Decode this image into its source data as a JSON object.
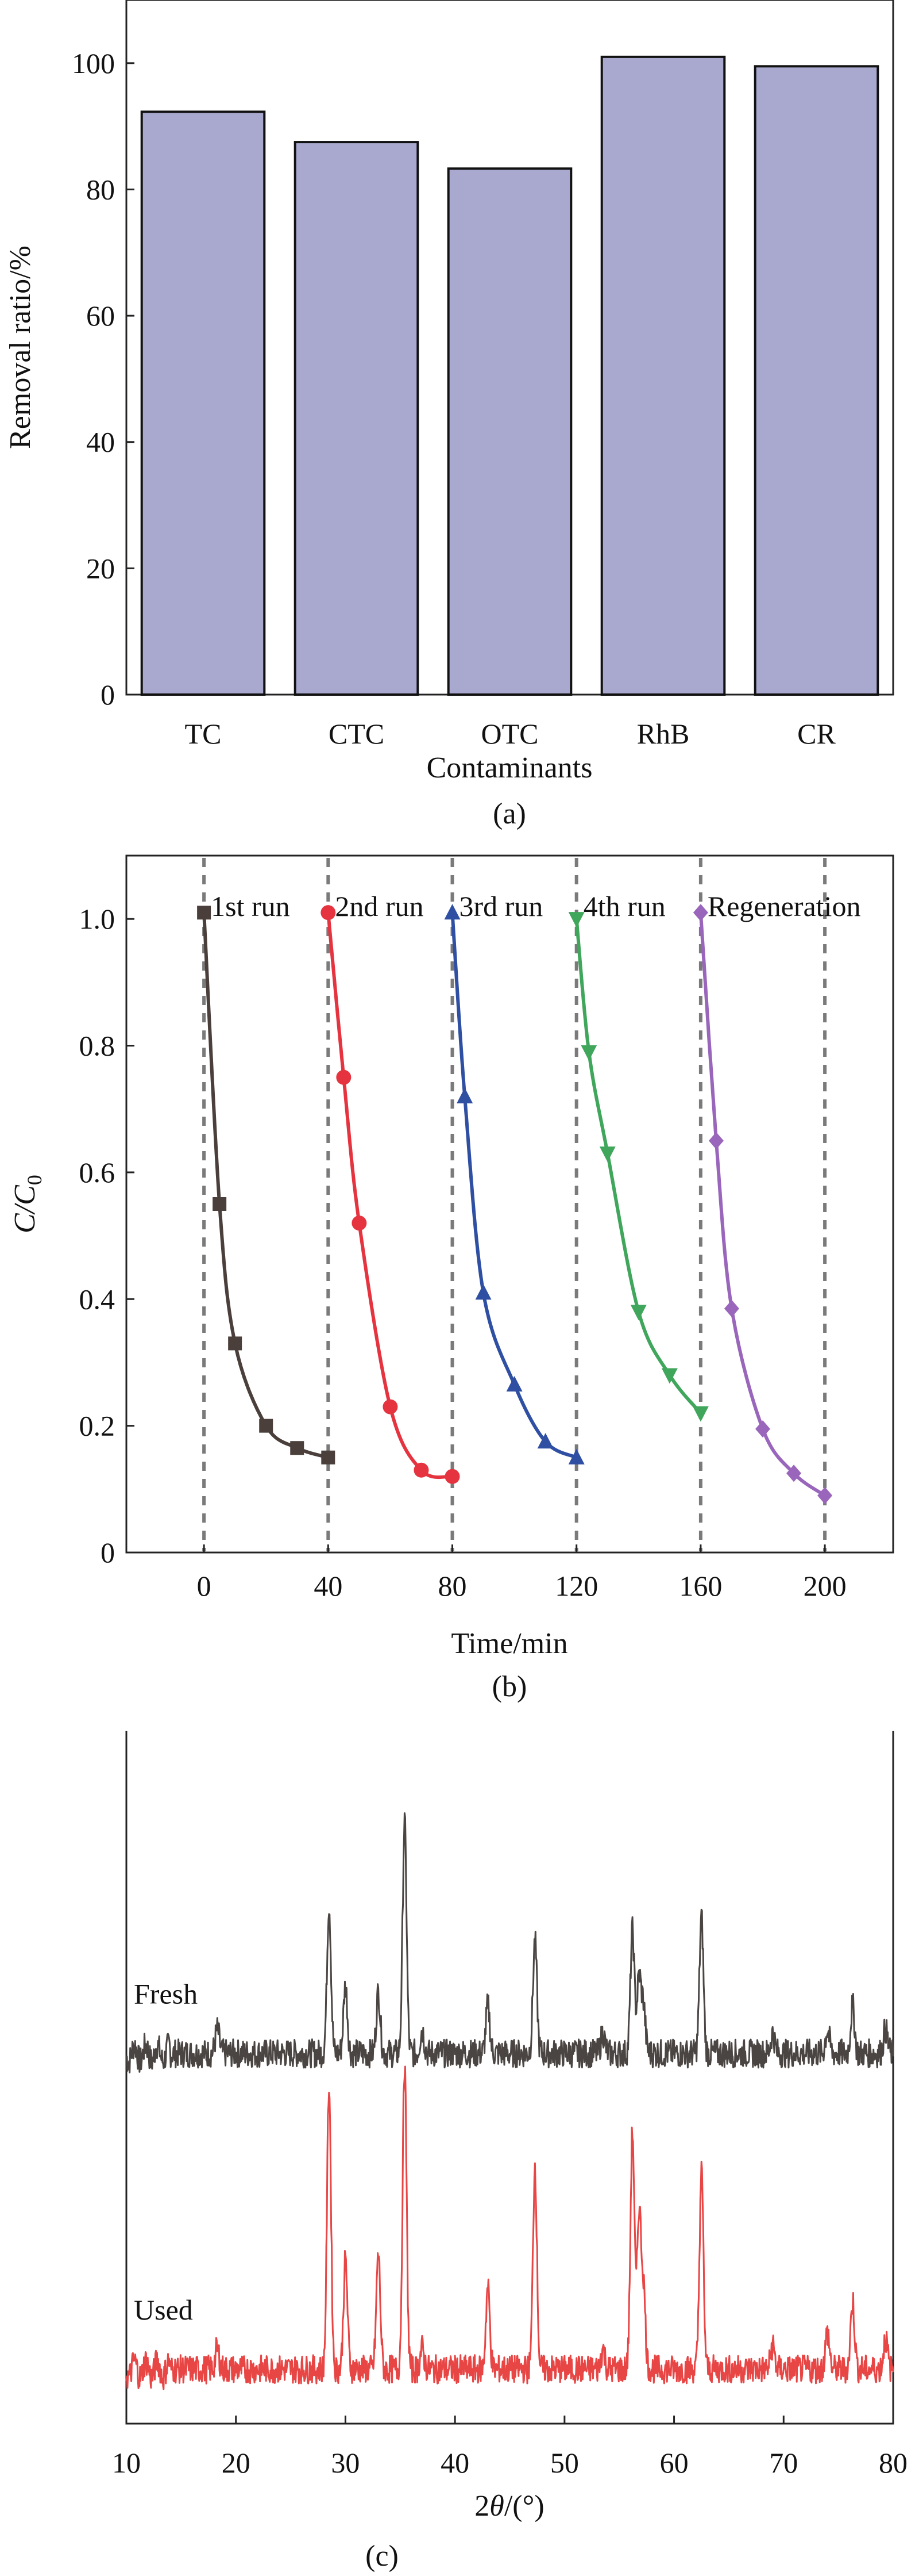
{
  "chart_data": [
    {
      "id": "a",
      "type": "bar",
      "caption": "(a)",
      "xlabel": "Contaminants",
      "ylabel": "Removal ratio/%",
      "ylim": [
        0,
        110
      ],
      "yticks": [
        0,
        20,
        40,
        60,
        80,
        100
      ],
      "categories": [
        "TC",
        "CTC",
        "OTC",
        "RhB",
        "CR"
      ],
      "values": [
        92.3,
        87.5,
        83.3,
        101,
        99.5
      ],
      "color": "#a9a9d0"
    },
    {
      "id": "b",
      "type": "line",
      "caption": "(b)",
      "xlabel": "Time/min",
      "ylabel_main": "C/C",
      "ylabel_sub": "0",
      "xlim": [
        -25,
        222
      ],
      "ylim": [
        0,
        1.1
      ],
      "xticks": [
        0,
        40,
        80,
        120,
        160,
        200
      ],
      "yticks": [
        0,
        0.2,
        0.4,
        0.6,
        0.8,
        1.0
      ],
      "ytick_labels": [
        "0",
        "0.2",
        "0.4",
        "0.6",
        "0.8",
        "1.0"
      ],
      "dashed_x": [
        0,
        40,
        80,
        120,
        160,
        200
      ],
      "series": [
        {
          "name": "1st run",
          "color": "#4a3f3b",
          "marker": "square",
          "x": [
            0,
            5,
            10,
            20,
            30,
            40
          ],
          "y": [
            1.01,
            0.55,
            0.33,
            0.2,
            0.165,
            0.15
          ]
        },
        {
          "name": "2nd run",
          "color": "#e5343f",
          "marker": "circle",
          "x": [
            40,
            45,
            50,
            60,
            70,
            80
          ],
          "y": [
            1.01,
            0.75,
            0.52,
            0.23,
            0.13,
            0.12
          ]
        },
        {
          "name": "3rd run",
          "color": "#2f4fa3",
          "marker": "triangle-up",
          "x": [
            80,
            84,
            90,
            100,
            110,
            120
          ],
          "y": [
            1.01,
            0.72,
            0.41,
            0.265,
            0.175,
            0.15
          ]
        },
        {
          "name": "4th run",
          "color": "#3fa65b",
          "marker": "triangle-down",
          "x": [
            120,
            124,
            130,
            140,
            150,
            160
          ],
          "y": [
            1.0,
            0.79,
            0.63,
            0.38,
            0.28,
            0.22
          ]
        },
        {
          "name": "Regeneration",
          "color": "#9966bb",
          "marker": "diamond",
          "x": [
            160,
            165,
            170,
            180,
            190,
            200
          ],
          "y": [
            1.01,
            0.65,
            0.385,
            0.195,
            0.125,
            0.09
          ]
        }
      ]
    },
    {
      "id": "c",
      "type": "line",
      "caption": "(c)",
      "xlabel_parts": [
        "2",
        "θ",
        "/(°)"
      ],
      "xlim": [
        10,
        80
      ],
      "xticks": [
        10,
        20,
        30,
        40,
        50,
        60,
        70,
        80
      ],
      "ylim": [
        0,
        10.2
      ],
      "series": [
        {
          "name": "Fresh",
          "color": "#4a4542",
          "baseline": 5.45,
          "peaks": [
            [
              18.3,
              0.35
            ],
            [
              28.5,
              2.2
            ],
            [
              30.0,
              1.0
            ],
            [
              33.0,
              0.9
            ],
            [
              35.4,
              3.4
            ],
            [
              37.0,
              0.35
            ],
            [
              43.0,
              0.7
            ],
            [
              47.3,
              1.65
            ],
            [
              53.5,
              0.3
            ],
            [
              56.2,
              1.8
            ],
            [
              56.8,
              1.1
            ],
            [
              57.2,
              0.7
            ],
            [
              62.5,
              2.0
            ],
            [
              69.0,
              0.3
            ],
            [
              74.0,
              0.35
            ],
            [
              76.3,
              0.7
            ],
            [
              79.3,
              0.35
            ]
          ]
        },
        {
          "name": "Used",
          "color": "#e84545",
          "baseline": 0.8,
          "peaks": [
            [
              18.3,
              0.3
            ],
            [
              28.5,
              4.2
            ],
            [
              30.0,
              1.6
            ],
            [
              33.0,
              1.7
            ],
            [
              35.4,
              4.5
            ],
            [
              37.0,
              0.3
            ],
            [
              43.0,
              1.2
            ],
            [
              47.3,
              3.0
            ],
            [
              53.5,
              0.3
            ],
            [
              56.2,
              3.5
            ],
            [
              56.8,
              2.3
            ],
            [
              57.2,
              1.2
            ],
            [
              62.5,
              2.9
            ],
            [
              69.0,
              0.35
            ],
            [
              74.0,
              0.55
            ],
            [
              76.3,
              1.0
            ],
            [
              79.3,
              0.45
            ]
          ]
        }
      ]
    }
  ]
}
